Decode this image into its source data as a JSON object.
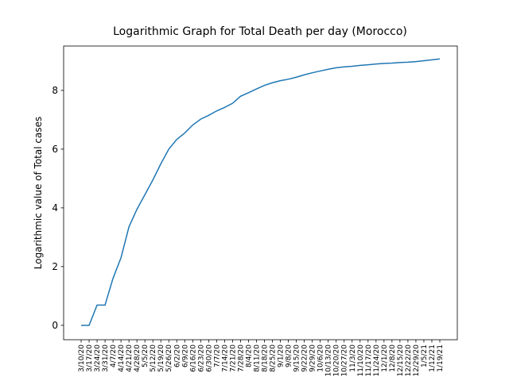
{
  "chart_data": {
    "type": "line",
    "title": "Logarithmic Graph for Total Death per day (Morocco)",
    "y_label": "Logarithmic value of Total cases",
    "categories": [
      "3/10/20",
      "3/17/20",
      "3/24/20",
      "3/31/20",
      "4/7/20",
      "4/14/20",
      "4/21/20",
      "4/28/20",
      "5/5/20",
      "5/12/20",
      "5/19/20",
      "5/26/20",
      "6/2/20",
      "6/9/20",
      "6/16/20",
      "6/23/20",
      "6/30/20",
      "7/7/20",
      "7/14/20",
      "7/21/20",
      "7/28/20",
      "8/4/20",
      "8/11/20",
      "8/18/20",
      "8/25/20",
      "9/1/20",
      "9/8/20",
      "9/15/20",
      "9/22/20",
      "9/29/20",
      "10/6/20",
      "10/13/20",
      "10/20/20",
      "10/27/20",
      "11/3/20",
      "11/10/20",
      "11/17/20",
      "11/24/20",
      "12/1/20",
      "12/8/20",
      "12/15/20",
      "12/22/20",
      "12/29/20",
      "1/5/21",
      "1/12/21",
      "1/19/21"
    ],
    "series": [
      {
        "color": "#1f77b4",
        "values": [
          0,
          0,
          0.69,
          0.69,
          1.6,
          2.3,
          3.35,
          3.95,
          4.45,
          4.95,
          5.5,
          6.0,
          6.33,
          6.55,
          6.82,
          7.02,
          7.15,
          7.3,
          7.42,
          7.56,
          7.8,
          7.92,
          8.05,
          8.17,
          8.26,
          8.33,
          8.38,
          8.45,
          8.53,
          8.6,
          8.66,
          8.72,
          8.77,
          8.8,
          8.82,
          8.85,
          8.87,
          8.9,
          8.92,
          8.93,
          8.95,
          8.96,
          8.98,
          9.01,
          9.04,
          9.07
        ]
      }
    ],
    "ylim": [
      -0.49,
      9.51
    ],
    "yticks": [
      0,
      2,
      4,
      6,
      8
    ],
    "grid": false
  }
}
